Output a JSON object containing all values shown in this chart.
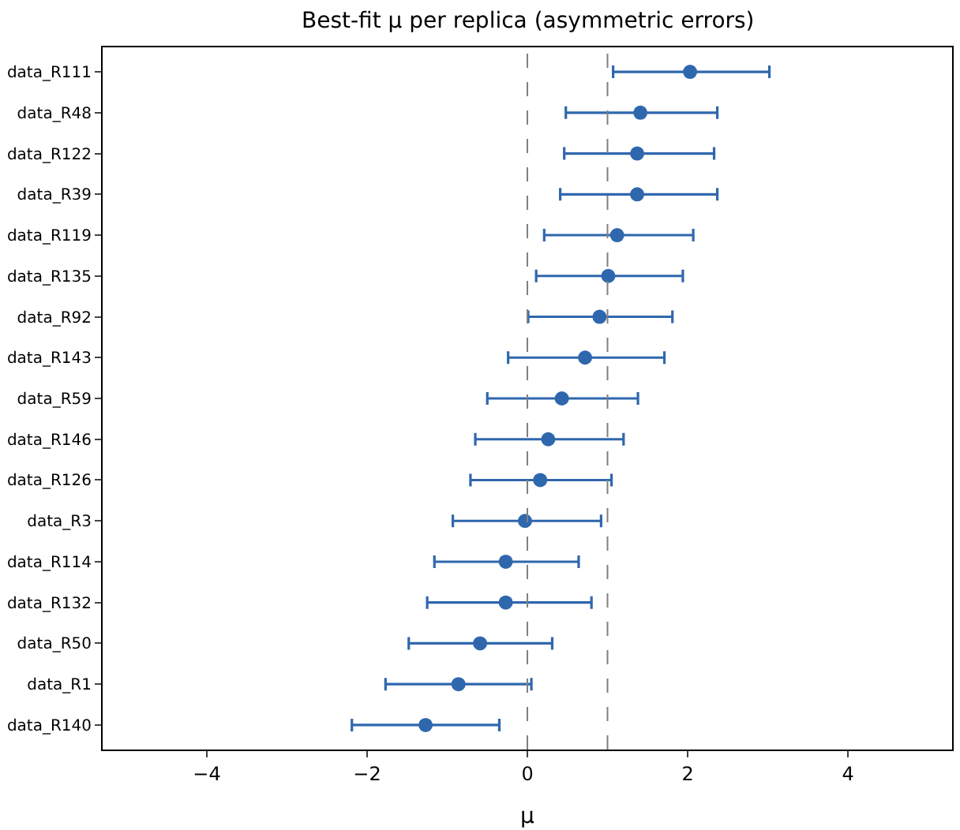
{
  "chart_data": {
    "type": "scatter",
    "orientation": "horizontal",
    "title": "Best-fit μ per replica (asymmetric errors)",
    "xlabel": "μ",
    "categories": [
      "data_R111",
      "data_R48",
      "data_R122",
      "data_R39",
      "data_R119",
      "data_R135",
      "data_R92",
      "data_R143",
      "data_R59",
      "data_R146",
      "data_R126",
      "data_R3",
      "data_R114",
      "data_R132",
      "data_R50",
      "data_R1",
      "data_R140"
    ],
    "series": [
      {
        "color": "#2f67ad",
        "values": [
          2.03,
          1.41,
          1.37,
          1.37,
          1.12,
          1.01,
          0.9,
          0.72,
          0.43,
          0.26,
          0.16,
          -0.03,
          -0.27,
          -0.27,
          -0.59,
          -0.86,
          -1.27
        ],
        "errors": [
          [
            1.07,
            3.02
          ],
          [
            0.48,
            2.37
          ],
          [
            0.46,
            2.33
          ],
          [
            0.41,
            2.37
          ],
          [
            0.21,
            2.07
          ],
          [
            0.11,
            1.94
          ],
          [
            0.01,
            1.81
          ],
          [
            -0.24,
            1.71
          ],
          [
            -0.5,
            1.38
          ],
          [
            -0.65,
            1.2
          ],
          [
            -0.71,
            1.05
          ],
          [
            -0.93,
            0.92
          ],
          [
            -1.16,
            0.64
          ],
          [
            -1.25,
            0.8
          ],
          [
            -1.48,
            0.31
          ],
          [
            -1.77,
            0.05
          ],
          [
            -2.19,
            -0.35
          ]
        ]
      }
    ],
    "xlim": [
      -5.3,
      5.3
    ],
    "xticks": [
      -4,
      -2,
      0,
      2,
      4
    ],
    "ref_lines": [
      {
        "axis": "x",
        "value": 0,
        "label": null,
        "color": "#808080",
        "line_style": "dashed"
      },
      {
        "axis": "x",
        "value": 1,
        "label": null,
        "color": "#808080",
        "line_style": "dashed"
      }
    ],
    "marker": "circle"
  }
}
